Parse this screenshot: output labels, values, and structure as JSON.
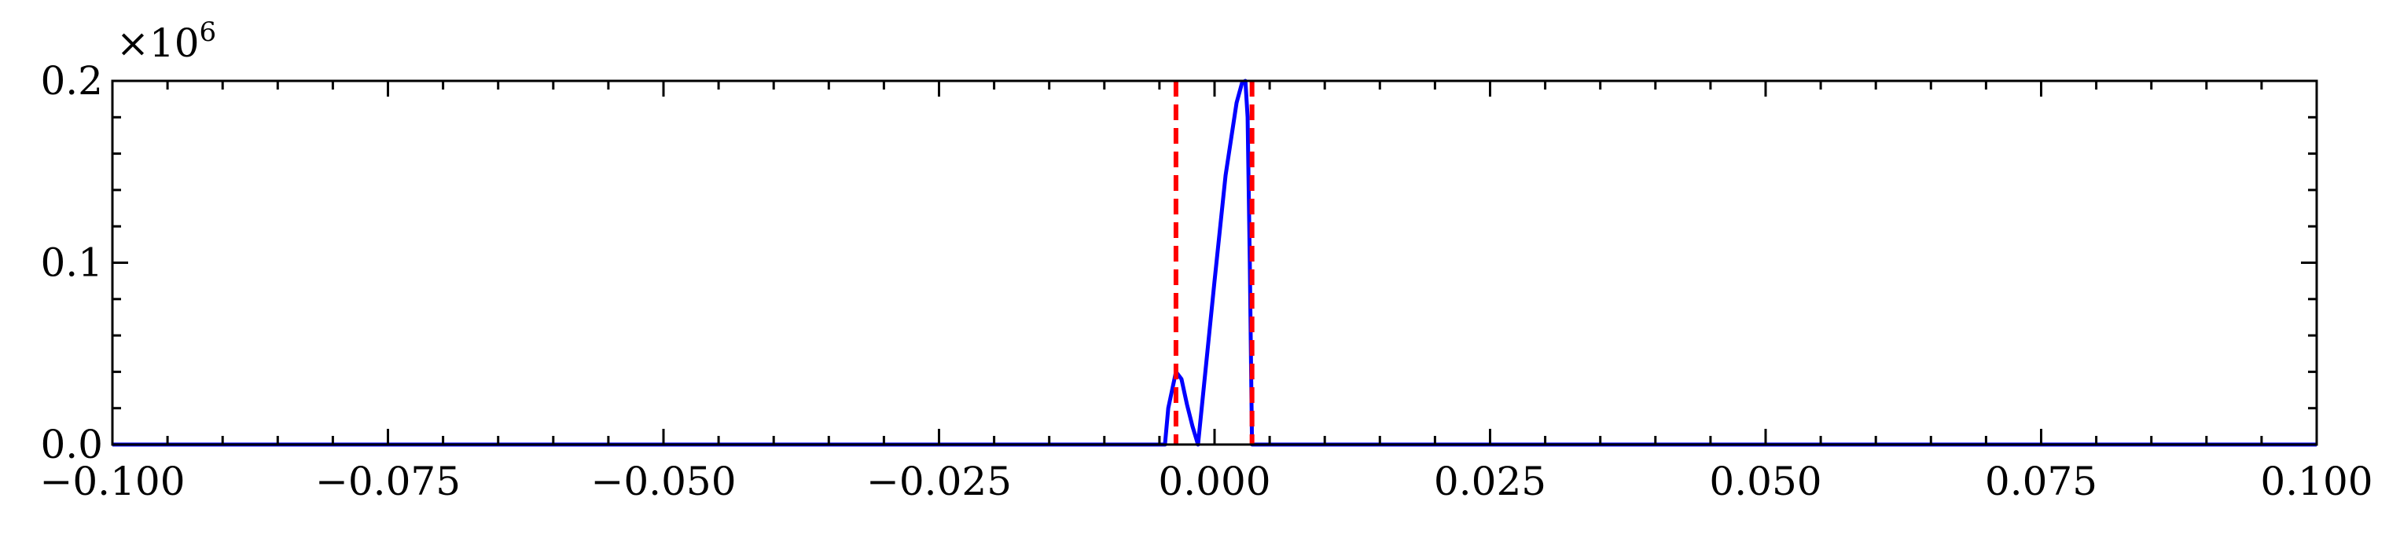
{
  "chart_data": {
    "type": "line",
    "title": "",
    "xlabel": "",
    "ylabel": "",
    "multiplier": {
      "base": "×10",
      "exponent": "6"
    },
    "xlim": [
      -0.1,
      0.1
    ],
    "ylim": [
      0,
      0.2
    ],
    "x_ticks": [
      -0.1,
      -0.075,
      -0.05,
      -0.025,
      0.0,
      0.025,
      0.05,
      0.075,
      0.1
    ],
    "x_tick_labels": [
      "−0.100",
      "−0.075",
      "−0.050",
      "−0.025",
      "0.000",
      "0.025",
      "0.050",
      "0.075",
      "0.100"
    ],
    "y_ticks": [
      0.0,
      0.1,
      0.2
    ],
    "y_tick_labels": [
      "0.0",
      "0.1",
      "0.2"
    ],
    "x_minor_step": 0.005,
    "y_minor_step": 0.02,
    "grid": false,
    "legend": "none",
    "colors": {
      "curve": "#0000ff",
      "vlines": "#ff0000",
      "axes": "#000000"
    },
    "series": [
      {
        "style": "solid",
        "color": "#0000ff",
        "x": [
          -0.1,
          -0.0045,
          -0.0042,
          -0.0035,
          -0.003,
          -0.0025,
          -0.002,
          -0.0015,
          -0.001,
          0.0,
          0.001,
          0.002,
          0.0025,
          0.0028,
          0.003,
          0.0032,
          0.0034,
          0.1
        ],
        "y": [
          0.0,
          0.0,
          0.02,
          0.04,
          0.036,
          0.022,
          0.01,
          0.0,
          0.03,
          0.09,
          0.148,
          0.188,
          0.199,
          0.2,
          0.18,
          0.1,
          0.0,
          0.0
        ]
      }
    ],
    "vlines": [
      {
        "x": -0.0035,
        "style": "dashed",
        "color": "#ff0000"
      },
      {
        "x": 0.0034,
        "style": "dashed",
        "color": "#ff0000"
      }
    ]
  }
}
